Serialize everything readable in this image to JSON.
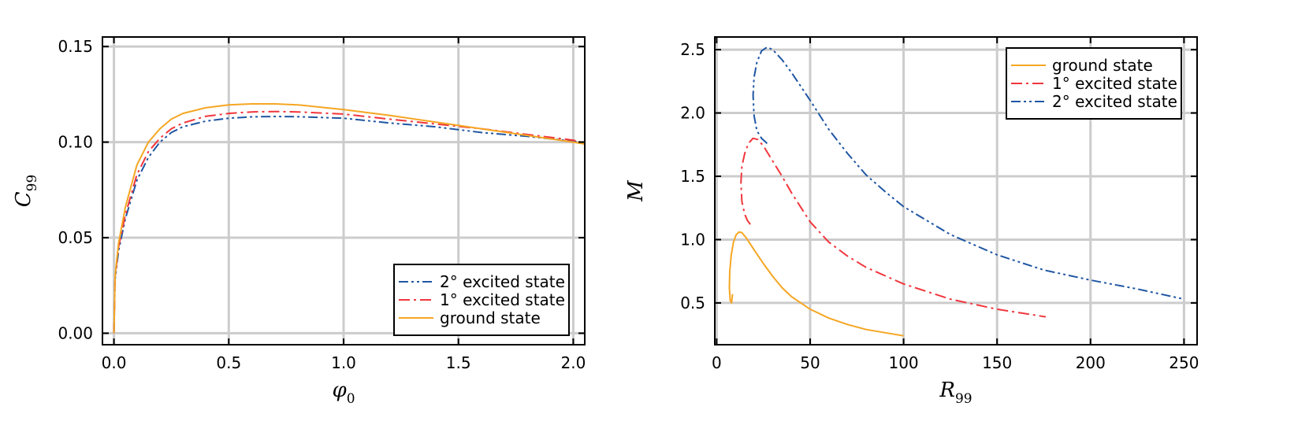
{
  "chart_data": [
    {
      "type": "line",
      "xlabel_symbol": "φ",
      "xlabel_sub": "0",
      "ylabel_symbol": "C",
      "ylabel_sub": "99",
      "xlim": [
        -0.05,
        2.05
      ],
      "ylim": [
        -0.006,
        0.155
      ],
      "xticks": [
        0.0,
        0.5,
        1.0,
        1.5,
        2.0
      ],
      "xtick_labels": [
        "0.0",
        "0.5",
        "1.0",
        "1.5",
        "2.0"
      ],
      "yticks": [
        0.0,
        0.05,
        0.1,
        0.15
      ],
      "ytick_labels": [
        "0.00",
        "0.05",
        "0.10",
        "0.15"
      ],
      "grid": true,
      "legend_position": "bottom-right",
      "series": [
        {
          "name": "2° excited state",
          "color": "#1f56a3",
          "dash": "dashdotdot",
          "x": [
            0.0,
            0.005,
            0.02,
            0.05,
            0.1,
            0.15,
            0.2,
            0.25,
            0.3,
            0.4,
            0.5,
            0.6,
            0.7,
            0.8,
            1.0,
            1.2,
            1.4,
            1.6,
            1.8,
            2.0,
            2.05
          ],
          "y": [
            0.0,
            0.028,
            0.043,
            0.06,
            0.08,
            0.092,
            0.1,
            0.105,
            0.108,
            0.111,
            0.1125,
            0.1132,
            0.1134,
            0.1133,
            0.1125,
            0.11,
            0.108,
            0.105,
            0.103,
            0.1005,
            0.0995
          ]
        },
        {
          "name": "1° excited state",
          "color": "#f0363c",
          "dash": "dashdot",
          "x": [
            0.0,
            0.005,
            0.02,
            0.05,
            0.1,
            0.15,
            0.2,
            0.25,
            0.3,
            0.4,
            0.5,
            0.6,
            0.7,
            0.8,
            1.0,
            1.2,
            1.4,
            1.6,
            1.8,
            2.0,
            2.05
          ],
          "y": [
            0.0,
            0.029,
            0.045,
            0.062,
            0.083,
            0.095,
            0.102,
            0.107,
            0.11,
            0.1135,
            0.115,
            0.1158,
            0.116,
            0.1158,
            0.1147,
            0.112,
            0.1095,
            0.107,
            0.104,
            0.101,
            0.0995
          ]
        },
        {
          "name": "ground state",
          "color": "#f5a623",
          "dash": "solid",
          "x": [
            0.0,
            0.005,
            0.02,
            0.05,
            0.1,
            0.15,
            0.2,
            0.25,
            0.3,
            0.4,
            0.5,
            0.6,
            0.7,
            0.8,
            1.0,
            1.2,
            1.4,
            1.6,
            1.8,
            2.0,
            2.05
          ],
          "y": [
            0.0,
            0.03,
            0.047,
            0.066,
            0.088,
            0.1,
            0.107,
            0.112,
            0.115,
            0.118,
            0.1195,
            0.12,
            0.12,
            0.1195,
            0.117,
            0.114,
            0.1105,
            0.107,
            0.1035,
            0.1,
            0.099
          ]
        }
      ]
    },
    {
      "type": "line",
      "xlabel_symbol": "R",
      "xlabel_sub": "99",
      "ylabel_symbol": "M",
      "ylabel_sub": "",
      "xlim": [
        -1,
        257
      ],
      "ylim": [
        0.17,
        2.6
      ],
      "xticks": [
        0,
        50,
        100,
        150,
        200,
        250
      ],
      "xtick_labels": [
        "0",
        "50",
        "100",
        "150",
        "200",
        "250"
      ],
      "yticks": [
        0.5,
        1.0,
        1.5,
        2.0,
        2.5
      ],
      "ytick_labels": [
        "0.5",
        "1.0",
        "1.5",
        "2.0",
        "2.5"
      ],
      "grid": true,
      "legend_position": "top-right",
      "series": [
        {
          "name": "ground state",
          "color": "#f5a623",
          "dash": "solid",
          "x": [
            8.5,
            8.0,
            7.2,
            6.8,
            7.0,
            7.8,
            9.0,
            10.5,
            12.0,
            13.5,
            16,
            20,
            25,
            30,
            35,
            40,
            50,
            60,
            70,
            80,
            90,
            100
          ],
          "y": [
            0.57,
            0.5,
            0.52,
            0.62,
            0.75,
            0.88,
            0.98,
            1.04,
            1.06,
            1.055,
            1.01,
            0.92,
            0.81,
            0.71,
            0.62,
            0.55,
            0.45,
            0.38,
            0.33,
            0.29,
            0.265,
            0.24
          ]
        },
        {
          "name": "1° excited state",
          "color": "#f0363c",
          "dash": "dashdot",
          "x": [
            18,
            16.5,
            15,
            13.5,
            13,
            13.5,
            15,
            17,
            19.5,
            22,
            25,
            30,
            35,
            40,
            50,
            60,
            70,
            80,
            100,
            125,
            150,
            176
          ],
          "y": [
            1.12,
            1.15,
            1.2,
            1.3,
            1.45,
            1.58,
            1.68,
            1.76,
            1.8,
            1.79,
            1.74,
            1.62,
            1.5,
            1.37,
            1.14,
            0.98,
            0.87,
            0.78,
            0.65,
            0.53,
            0.45,
            0.39
          ]
        },
        {
          "name": "2° excited state",
          "color": "#1f56a3",
          "dash": "dashdotdot",
          "x": [
            27,
            24,
            21.5,
            20,
            19.5,
            20,
            21.5,
            24,
            27,
            30,
            35,
            40,
            50,
            60,
            70,
            80,
            90,
            100,
            125,
            150,
            175,
            200,
            225,
            250
          ],
          "y": [
            1.76,
            1.8,
            1.86,
            1.98,
            2.14,
            2.28,
            2.4,
            2.49,
            2.52,
            2.5,
            2.42,
            2.32,
            2.1,
            1.87,
            1.68,
            1.51,
            1.38,
            1.26,
            1.04,
            0.88,
            0.76,
            0.68,
            0.61,
            0.53
          ]
        }
      ]
    }
  ]
}
